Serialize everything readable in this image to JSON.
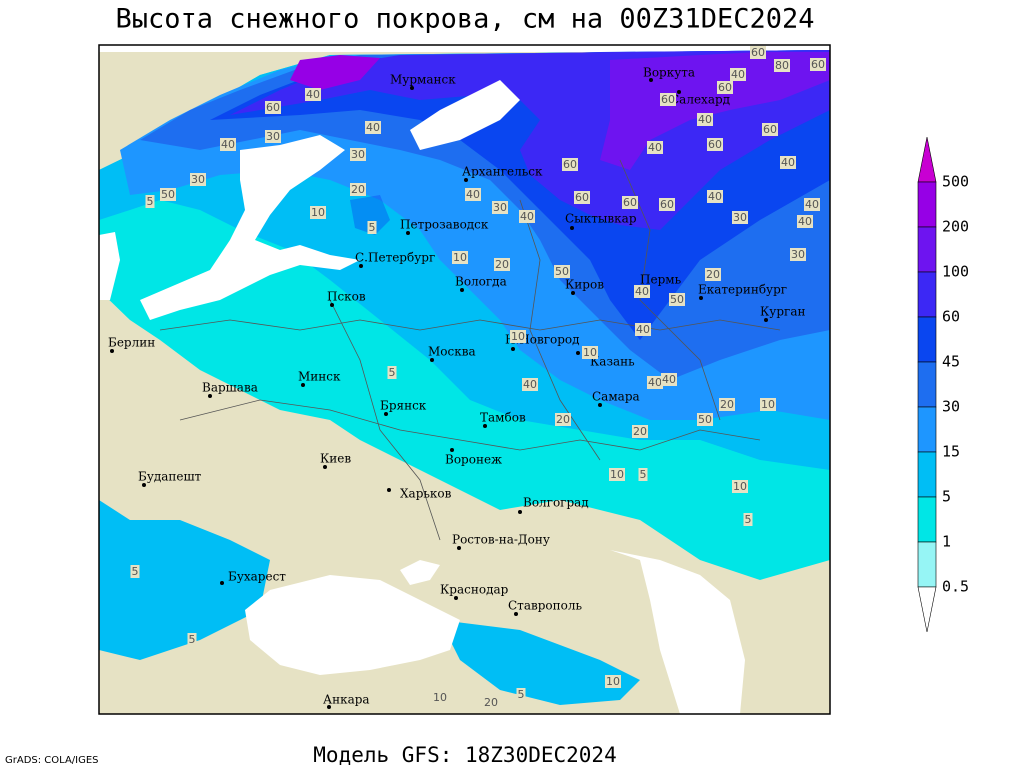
{
  "title": "Высота снежного покрова, см на 00Z31DEC2024",
  "footer": "Модель GFS: 18Z30DEC2024",
  "credit": "GrADS: COLA/IGES",
  "legend": {
    "levels": [
      500,
      200,
      100,
      60,
      45,
      30,
      15,
      5,
      1,
      0.5
    ],
    "colors": [
      "#c800d2",
      "#9600e6",
      "#6e14f0",
      "#3c28f5",
      "#0a46f0",
      "#1e6ef0",
      "#1e96ff",
      "#00bef5",
      "#00e6e6",
      "#96f5f5",
      "#ffffff"
    ]
  },
  "cities": [
    "Мурманск",
    "Воркута",
    "Салехард",
    "Архангельск",
    "Сыктывкар",
    "Петрозаводск",
    "С.Петербург",
    "Вологда",
    "Киров",
    "Пермь",
    "Екатеринбург",
    "Курган",
    "Псков",
    "Берлин",
    "Н.Новгород",
    "Казань",
    "Москва",
    "Минск",
    "Варшава",
    "Брянск",
    "Тамбов",
    "Самара",
    "Киев",
    "Воронеж",
    "Будапешт",
    "Харьков",
    "Волгоград",
    "Ростов-на-Дону",
    "Бухарест",
    "Краснодар",
    "Ставрополь",
    "Анкара"
  ],
  "contour_labels": [
    40,
    60,
    30,
    40,
    30,
    40,
    20,
    10,
    30,
    50,
    5,
    40,
    30,
    40,
    60,
    60,
    60,
    60,
    40,
    30,
    40,
    40,
    30,
    20,
    60,
    40,
    80,
    60,
    60,
    60,
    40,
    60,
    60,
    40,
    40,
    20,
    10,
    5,
    50,
    40,
    50,
    40,
    40,
    40,
    20,
    10,
    50,
    10,
    10,
    40,
    20,
    20,
    10,
    5,
    10,
    5,
    5,
    5,
    5,
    10,
    10,
    20,
    5
  ]
}
